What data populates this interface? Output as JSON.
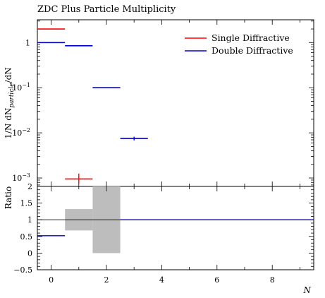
{
  "chart_data": [
    {
      "type": "line",
      "title": "ZDC Plus Particle Multiplicity",
      "ylabel": "1/N dN_particle/dN",
      "ylabel_parts": {
        "pre": "1/N dN",
        "sub": "particle",
        "post": "/dN"
      },
      "yscale": "log",
      "ylim": [
        0.00065,
        3.2
      ],
      "xlim": [
        -0.5,
        9.5
      ],
      "yticks": [
        {
          "value": 1,
          "mantissa": "1",
          "exp": ""
        },
        {
          "value": 0.1,
          "mantissa": "10",
          "exp": "−1"
        },
        {
          "value": 0.01,
          "mantissa": "10",
          "exp": "−2"
        },
        {
          "value": 0.001,
          "mantissa": "10",
          "exp": "−3"
        }
      ],
      "legend_position": "top-right",
      "series": [
        {
          "name": "Single Diffractive",
          "color": "#ff0000",
          "bins": [
            {
              "x0": -0.5,
              "x1": 0.5,
              "y": 2.0
            },
            {
              "x0": 0.5,
              "x1": 1.5,
              "y": 0.00095,
              "err_low": 0.00075,
              "err_high": 0.00125
            }
          ]
        },
        {
          "name": "Double Diffractive",
          "color": "#0000cc",
          "bins": [
            {
              "x0": -0.5,
              "x1": 0.5,
              "y": 1.0
            },
            {
              "x0": 0.5,
              "x1": 1.5,
              "y": 0.85
            },
            {
              "x0": 1.5,
              "x1": 2.5,
              "y": 0.1
            },
            {
              "x0": 2.5,
              "x1": 3.5,
              "y": 0.0075,
              "err_low": 0.0068,
              "err_high": 0.0082
            }
          ]
        }
      ]
    },
    {
      "type": "line",
      "ylabel": "Ratio",
      "xlabel": "N",
      "ylim": [
        -0.5,
        2
      ],
      "xlim": [
        -0.5,
        9.5
      ],
      "yticks": [
        "−0.5",
        "0",
        "0.5",
        "1",
        "1.5",
        "2"
      ],
      "ytick_values": [
        -0.5,
        0,
        0.5,
        1,
        1.5,
        2
      ],
      "xticks": [
        "0",
        "2",
        "4",
        "6",
        "8"
      ],
      "xtick_values": [
        0,
        2,
        4,
        6,
        8
      ],
      "reference": 1,
      "band": [
        {
          "x0": 0.5,
          "x1": 1.5,
          "lo": 0.68,
          "hi": 1.32
        },
        {
          "x0": 1.5,
          "x1": 2.5,
          "lo": 0.0,
          "hi": 2.0
        }
      ],
      "ratio_series": {
        "color": "#0000cc",
        "bins": [
          {
            "x0": -0.5,
            "x1": 0.5,
            "y": 0.52
          },
          {
            "x0": 2.5,
            "x1": 9.5,
            "y": 1.0
          }
        ]
      }
    }
  ]
}
